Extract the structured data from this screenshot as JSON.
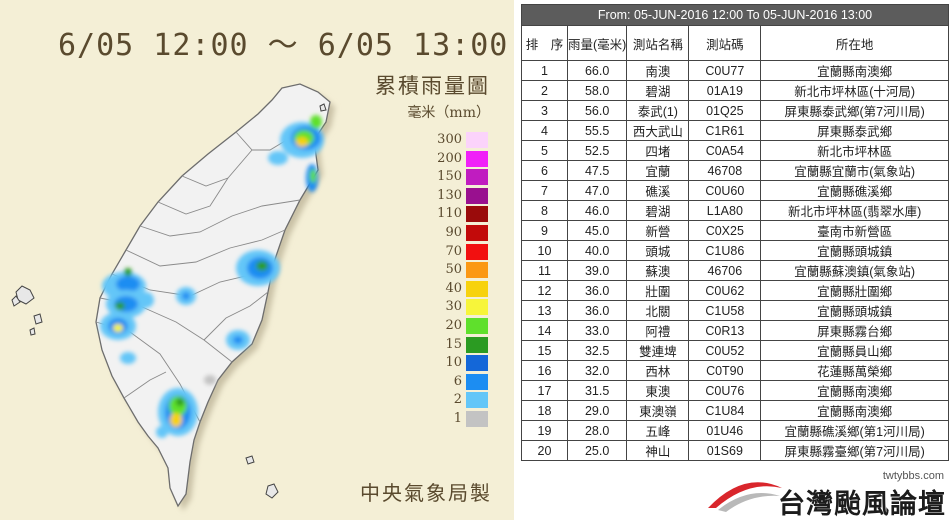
{
  "map": {
    "title": "6/05 12:00 ～ 6/05 13:00",
    "subtitle": "累積雨量圖",
    "unit": "毫米（mm）",
    "credit": "中央氣象局製",
    "legend": [
      {
        "label": "300",
        "color": "#fbd3fb"
      },
      {
        "label": "200",
        "color": "#f020f8"
      },
      {
        "label": "150",
        "color": "#c01cc0"
      },
      {
        "label": "130",
        "color": "#99108f"
      },
      {
        "label": "110",
        "color": "#9a0b0b"
      },
      {
        "label": "90",
        "color": "#c20a0a"
      },
      {
        "label": "70",
        "color": "#f21010"
      },
      {
        "label": "50",
        "color": "#fb9814"
      },
      {
        "label": "40",
        "color": "#f7d20c"
      },
      {
        "label": "30",
        "color": "#f7f53a"
      },
      {
        "label": "20",
        "color": "#5fe02c"
      },
      {
        "label": "15",
        "color": "#2b9b22"
      },
      {
        "label": "10",
        "color": "#1467d8"
      },
      {
        "label": "6",
        "color": "#1c8df2"
      },
      {
        "label": "2",
        "color": "#63c6f8"
      },
      {
        "label": "1",
        "color": "#c3c3c3"
      }
    ]
  },
  "table": {
    "caption": "From: 05-JUN-2016 12:00 To 05-JUN-2016 13:00",
    "headers": [
      "排　序",
      "雨量(毫米)",
      "測站名稱",
      "測站碼",
      "所在地"
    ],
    "rows": [
      [
        "1",
        "66.0",
        "南澳",
        "C0U77",
        "宜蘭縣南澳鄉"
      ],
      [
        "2",
        "58.0",
        "碧湖",
        "01A19",
        "新北市坪林區(十河局)"
      ],
      [
        "3",
        "56.0",
        "泰武(1)",
        "01Q25",
        "屏東縣泰武鄉(第7河川局)"
      ],
      [
        "4",
        "55.5",
        "西大武山",
        "C1R61",
        "屏東縣泰武鄉"
      ],
      [
        "5",
        "52.5",
        "四堵",
        "C0A54",
        "新北市坪林區"
      ],
      [
        "6",
        "47.5",
        "宜蘭",
        "46708",
        "宜蘭縣宜蘭市(氣象站)"
      ],
      [
        "7",
        "47.0",
        "礁溪",
        "C0U60",
        "宜蘭縣礁溪鄉"
      ],
      [
        "8",
        "46.0",
        "碧湖",
        "L1A80",
        "新北市坪林區(翡翠水庫)"
      ],
      [
        "9",
        "45.0",
        "新營",
        "C0X25",
        "臺南市新營區"
      ],
      [
        "10",
        "40.0",
        "頭城",
        "C1U86",
        "宜蘭縣頭城鎮"
      ],
      [
        "11",
        "39.0",
        "蘇澳",
        "46706",
        "宜蘭縣蘇澳鎮(氣象站)"
      ],
      [
        "12",
        "36.0",
        "壯圍",
        "C0U62",
        "宜蘭縣壯圍鄉"
      ],
      [
        "13",
        "36.0",
        "北關",
        "C1U58",
        "宜蘭縣頭城鎮"
      ],
      [
        "14",
        "33.0",
        "阿禮",
        "C0R13",
        "屏東縣霧台鄉"
      ],
      [
        "15",
        "32.5",
        "雙連埤",
        "C0U52",
        "宜蘭縣員山鄉"
      ],
      [
        "16",
        "32.0",
        "西林",
        "C0T90",
        "花蓮縣萬榮鄉"
      ],
      [
        "17",
        "31.5",
        "東澳",
        "C0U76",
        "宜蘭縣南澳鄉"
      ],
      [
        "18",
        "29.0",
        "東澳嶺",
        "C1U84",
        "宜蘭縣南澳鄉"
      ],
      [
        "19",
        "28.0",
        "五峰",
        "01U46",
        "宜蘭縣礁溪鄉(第1河川局)"
      ],
      [
        "20",
        "25.0",
        "神山",
        "01S69",
        "屏東縣霧臺鄉(第7河川局)"
      ]
    ]
  },
  "watermark": {
    "url": "twtybbs.com",
    "name": "台灣颱風論壇"
  }
}
